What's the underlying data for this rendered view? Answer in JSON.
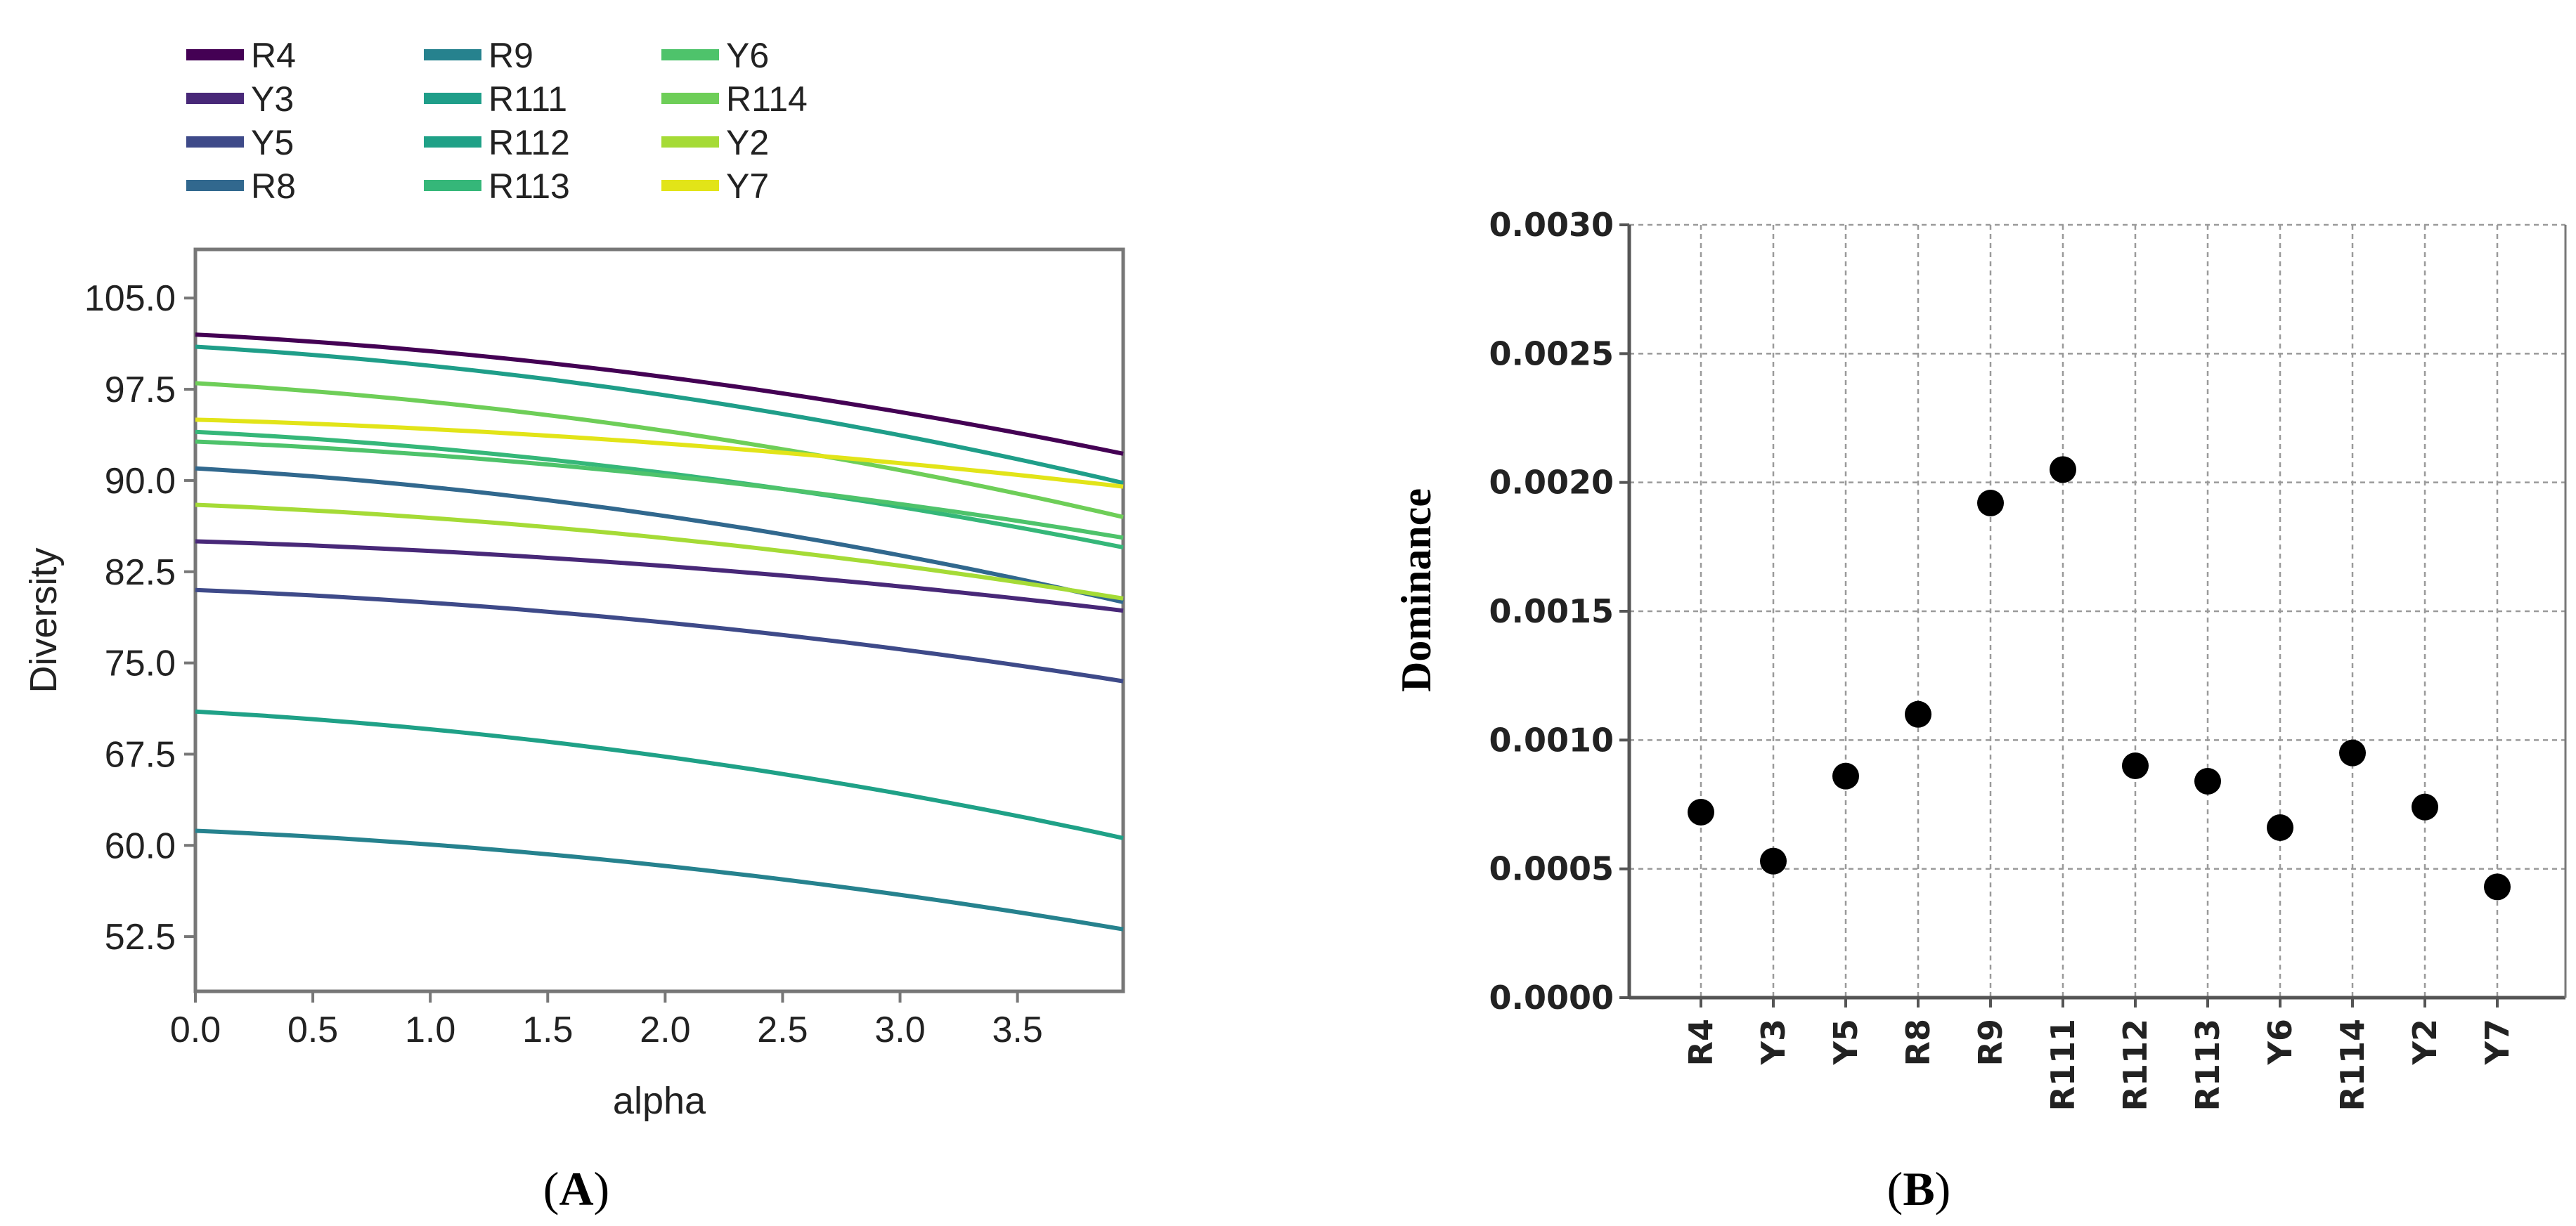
{
  "chart_data": [
    {
      "type": "line",
      "panel": "A",
      "panel_label": "A",
      "xlabel": "alpha",
      "ylabel": "Diversity",
      "xlim": [
        0.0,
        3.95
      ],
      "ylim": [
        48.0,
        109.0
      ],
      "x_ticks": [
        0.0,
        0.5,
        1.0,
        1.5,
        2.0,
        2.5,
        3.0,
        3.5
      ],
      "x_tick_labels": [
        "0.0",
        "0.5",
        "1.0",
        "1.5",
        "2.0",
        "2.5",
        "3.0",
        "3.5"
      ],
      "y_ticks": [
        52.5,
        60.0,
        67.5,
        75.0,
        82.5,
        90.0,
        97.5,
        105.0
      ],
      "y_tick_labels": [
        "52.5",
        "60.0",
        "67.5",
        "75.0",
        "82.5",
        "90.0",
        "97.5",
        "105.0"
      ],
      "legend_position": "top",
      "series": [
        {
          "name": "R4",
          "color": "#440154",
          "start": 102.0,
          "end": 92.2
        },
        {
          "name": "Y3",
          "color": "#482878",
          "start": 85.0,
          "end": 79.3
        },
        {
          "name": "Y5",
          "color": "#3e4a89",
          "start": 81.0,
          "end": 73.5
        },
        {
          "name": "R8",
          "color": "#31688e",
          "start": 91.0,
          "end": 80.0
        },
        {
          "name": "R9",
          "color": "#26828e",
          "start": 61.2,
          "end": 53.1
        },
        {
          "name": "R111",
          "color": "#1f9e89",
          "start": 101.0,
          "end": 89.8
        },
        {
          "name": "R112",
          "color": "#1fa187",
          "start": 71.0,
          "end": 60.6
        },
        {
          "name": "R113",
          "color": "#35b779",
          "start": 94.0,
          "end": 84.5
        },
        {
          "name": "Y6",
          "color": "#4ec36b",
          "start": 93.2,
          "end": 85.3
        },
        {
          "name": "R114",
          "color": "#6ece58",
          "start": 98.0,
          "end": 87.0
        },
        {
          "name": "Y2",
          "color": "#a5db36",
          "start": 88.0,
          "end": 80.3
        },
        {
          "name": "Y7",
          "color": "#e2e418",
          "start": 95.0,
          "end": 89.5
        }
      ]
    },
    {
      "type": "scatter",
      "panel": "B",
      "panel_label": "B",
      "xlabel": "",
      "ylabel": "Dominance",
      "ylim": [
        0.0,
        0.003
      ],
      "y_ticks": [
        0.0,
        0.0005,
        0.001,
        0.0015,
        0.002,
        0.0025,
        0.003
      ],
      "y_tick_labels": [
        "0.0000",
        "0.0005",
        "0.0010",
        "0.0015",
        "0.0020",
        "0.0025",
        "0.0030"
      ],
      "grid": true,
      "categories": [
        "R4",
        "Y3",
        "Y5",
        "R8",
        "R9",
        "R111",
        "R112",
        "R113",
        "Y6",
        "R114",
        "Y2",
        "Y7"
      ],
      "values": [
        0.00072,
        0.00053,
        0.00086,
        0.0011,
        0.00192,
        0.00205,
        0.0009,
        0.00084,
        0.00066,
        0.00095,
        0.00074,
        0.00043
      ]
    }
  ]
}
